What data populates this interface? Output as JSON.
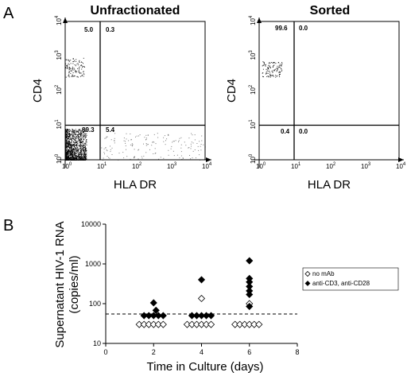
{
  "figure": {
    "panel_labels": [
      "A",
      "B"
    ]
  },
  "chart_data": [
    {
      "type": "scatter",
      "panel": "A",
      "title": "Unfractionated",
      "xlabel": "HLA DR",
      "ylabel": "CD4",
      "x_scale": "log",
      "y_scale": "log",
      "xlim": [
        1,
        10000
      ],
      "ylim": [
        1,
        10000
      ],
      "tick_labels": [
        "10",
        "10",
        "10",
        "10",
        "10"
      ],
      "tick_exponents": [
        "0",
        "1",
        "2",
        "3",
        "4"
      ],
      "gate_x": 10,
      "gate_y": 10,
      "quadrants": [
        {
          "position": "upper-left",
          "value": "5.0"
        },
        {
          "position": "upper-right",
          "value": "0.3"
        },
        {
          "position": "lower-left",
          "value": "89.3"
        },
        {
          "position": "lower-right",
          "value": "5.4"
        }
      ],
      "populations": [
        {
          "name": "",
          "x_range": [
            1,
            4
          ],
          "y_range": [
            1,
            8
          ],
          "density": "very high"
        },
        {
          "name": "",
          "x_range": [
            1,
            3.5
          ],
          "y_range": [
            250,
            900
          ],
          "density": "medium"
        },
        {
          "name": "",
          "x_range": [
            10,
            10000
          ],
          "y_range": [
            1,
            6
          ],
          "density": "low"
        }
      ]
    },
    {
      "type": "scatter",
      "panel": "A",
      "title": "Sorted",
      "xlabel": "HLA DR",
      "ylabel": "CD4",
      "x_scale": "log",
      "y_scale": "log",
      "xlim": [
        1,
        10000
      ],
      "ylim": [
        1,
        10000
      ],
      "tick_labels": [
        "10",
        "10",
        "10",
        "10",
        "10"
      ],
      "tick_exponents": [
        "0",
        "1",
        "2",
        "3",
        "4"
      ],
      "gate_x": 10,
      "gate_y": 10,
      "quadrants": [
        {
          "position": "upper-left",
          "value": "99.6"
        },
        {
          "position": "upper-right",
          "value": "0.0"
        },
        {
          "position": "lower-left",
          "value": "0.4"
        },
        {
          "position": "lower-right",
          "value": "0.0"
        }
      ],
      "populations": [
        {
          "name": "",
          "x_range": [
            1.2,
            4.5
          ],
          "y_range": [
            250,
            700
          ],
          "density": "medium"
        }
      ]
    },
    {
      "type": "scatter",
      "panel": "B",
      "title": "",
      "xlabel": "Time in Culture (days)",
      "ylabel_lines": [
        "Supernatant HIV-1 RNA",
        "(copies/ml)"
      ],
      "x_scale": "linear",
      "y_scale": "log",
      "xlim": [
        0,
        8
      ],
      "ylim": [
        10,
        10000
      ],
      "x_ticks": [
        "0",
        "2",
        "4",
        "6",
        "8"
      ],
      "y_ticks": [
        "10",
        "100",
        "1000",
        "10000"
      ],
      "detection_limit": 55,
      "legend_position": "right",
      "series": [
        {
          "name": "no mAb",
          "marker": "open-diamond",
          "points": [
            {
              "x": 1.4,
              "y": 30
            },
            {
              "x": 1.6,
              "y": 30
            },
            {
              "x": 1.8,
              "y": 30
            },
            {
              "x": 2.0,
              "y": 30
            },
            {
              "x": 2.2,
              "y": 30
            },
            {
              "x": 2.4,
              "y": 30
            },
            {
              "x": 3.4,
              "y": 30
            },
            {
              "x": 3.6,
              "y": 30
            },
            {
              "x": 3.8,
              "y": 30
            },
            {
              "x": 4.0,
              "y": 30
            },
            {
              "x": 4.2,
              "y": 30
            },
            {
              "x": 4.4,
              "y": 30
            },
            {
              "x": 4.0,
              "y": 135
            },
            {
              "x": 5.4,
              "y": 30
            },
            {
              "x": 5.6,
              "y": 30
            },
            {
              "x": 5.8,
              "y": 30
            },
            {
              "x": 6.0,
              "y": 30
            },
            {
              "x": 6.2,
              "y": 30
            },
            {
              "x": 6.4,
              "y": 30
            },
            {
              "x": 6.0,
              "y": 100
            }
          ]
        },
        {
          "name": "anti-CD3, anti-CD28",
          "marker": "filled-diamond",
          "points": [
            {
              "x": 1.6,
              "y": 50
            },
            {
              "x": 1.8,
              "y": 50
            },
            {
              "x": 2.0,
              "y": 50
            },
            {
              "x": 2.2,
              "y": 50
            },
            {
              "x": 2.4,
              "y": 50
            },
            {
              "x": 2.1,
              "y": 68
            },
            {
              "x": 2.0,
              "y": 105
            },
            {
              "x": 3.6,
              "y": 50
            },
            {
              "x": 3.8,
              "y": 50
            },
            {
              "x": 4.0,
              "y": 50
            },
            {
              "x": 4.2,
              "y": 50
            },
            {
              "x": 4.4,
              "y": 50
            },
            {
              "x": 4.0,
              "y": 400
            },
            {
              "x": 6.0,
              "y": 1200
            },
            {
              "x": 6.0,
              "y": 430
            },
            {
              "x": 6.0,
              "y": 350
            },
            {
              "x": 6.0,
              "y": 270
            },
            {
              "x": 6.0,
              "y": 210
            },
            {
              "x": 6.0,
              "y": 170
            },
            {
              "x": 6.0,
              "y": 85
            }
          ]
        }
      ]
    }
  ]
}
